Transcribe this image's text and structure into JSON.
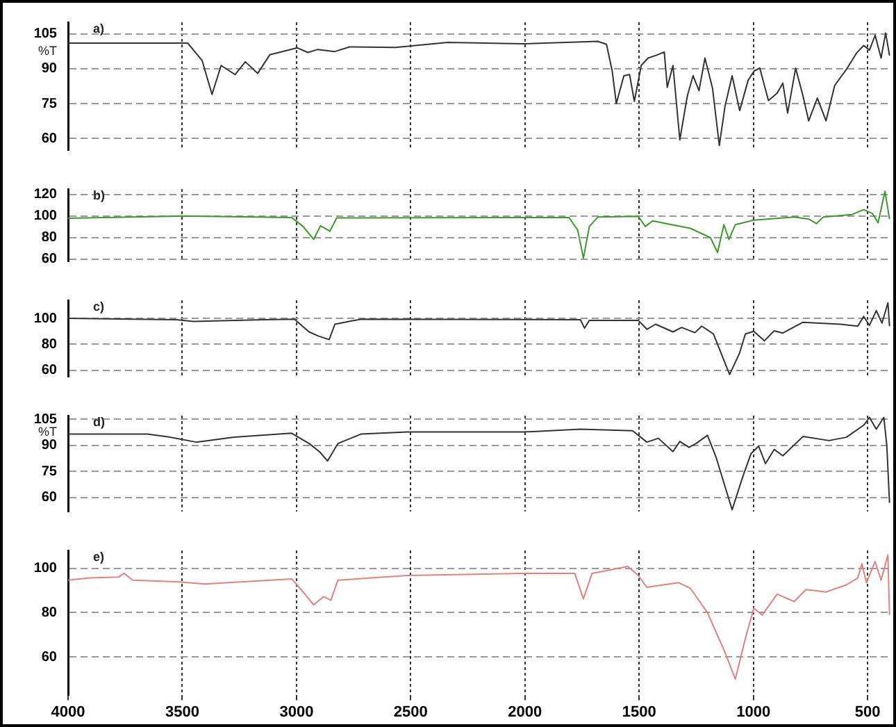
{
  "chart_data": [
    {
      "type": "line",
      "ylabel": "%T",
      "annotations": [
        "a)"
      ],
      "xlim": [
        4000,
        400
      ],
      "xticks": [
        4000,
        3500,
        3000,
        2500,
        2000,
        1500,
        1000,
        500
      ],
      "ylim": [
        55,
        110
      ],
      "yticks": [
        60,
        75,
        90,
        105
      ],
      "grid": true,
      "tick_labels": "y",
      "series": [
        {
          "color": "#333333",
          "x": [
            4000,
            3476,
            3413,
            3370,
            3330,
            3269,
            3224,
            3170,
            3117,
            2996,
            2950,
            2907,
            2832,
            2768,
            2566,
            2338,
            2010,
            1681,
            1643,
            1618,
            1600,
            1567,
            1542,
            1521,
            1491,
            1461,
            1428,
            1390,
            1377,
            1352,
            1322,
            1289,
            1264,
            1238,
            1212,
            1179,
            1149,
            1124,
            1093,
            1060,
            1023,
            997,
            972,
            934,
            896,
            871,
            850,
            815,
            783,
            758,
            720,
            682,
            644,
            593,
            548,
            517,
            492,
            467,
            441,
            421,
            404
          ],
          "values": [
            101,
            101,
            93.5,
            79,
            91.4,
            87.5,
            93,
            88,
            96,
            99,
            97,
            98.3,
            97.4,
            99.4,
            99.2,
            101.3,
            100.7,
            101.8,
            100.5,
            89,
            75,
            87,
            87.5,
            76,
            91.4,
            94.6,
            95.7,
            97.2,
            82,
            91.4,
            59.4,
            78.4,
            87,
            80.6,
            94.6,
            81.7,
            57,
            74,
            87,
            72,
            85,
            89,
            90.3,
            76.3,
            79.5,
            83.8,
            70.9,
            90.3,
            78.4,
            67.6,
            77.4,
            67.6,
            82.8,
            89.7,
            96.8,
            100,
            98,
            104.4,
            94.6,
            105.4,
            95.7
          ]
        }
      ]
    },
    {
      "type": "line",
      "annotations": [
        "b)"
      ],
      "xlim": [
        4000,
        400
      ],
      "xticks": [
        4000,
        3500,
        3000,
        2500,
        2000,
        1500,
        1000,
        500
      ],
      "ylim": [
        58,
        125
      ],
      "yticks": [
        60,
        80,
        100,
        120
      ],
      "grid": true,
      "tick_labels": "y",
      "series": [
        {
          "color": "#3a9a2a",
          "x": [
            4000,
            3502,
            3021,
            2971,
            2925,
            2895,
            2854,
            2824,
            1807,
            1769,
            1744,
            1718,
            1681,
            1504,
            1473,
            1441,
            1377,
            1276,
            1188,
            1157,
            1129,
            1107,
            1079,
            998,
            821,
            758,
            724,
            694,
            568,
            517,
            479,
            454,
            424,
            404
          ],
          "values": [
            98,
            100,
            98.6,
            90.3,
            78.3,
            91,
            85.9,
            98.3,
            98.6,
            86.9,
            61,
            90.3,
            99,
            99.7,
            90.3,
            95.5,
            92.8,
            88.6,
            80,
            66.2,
            92,
            78.3,
            92,
            96.2,
            99,
            97.2,
            93,
            99,
            101.4,
            105.9,
            102.4,
            93.8,
            123,
            97.2
          ]
        }
      ]
    },
    {
      "type": "line",
      "annotations": [
        "c)"
      ],
      "xlim": [
        4000,
        400
      ],
      "xticks": [
        4000,
        3500,
        3000,
        2500,
        2000,
        1500,
        1000,
        500
      ],
      "ylim": [
        55,
        114
      ],
      "yticks": [
        60,
        80,
        100
      ],
      "grid": true,
      "tick_labels": "y",
      "series": [
        {
          "color": "#333333",
          "x": [
            4000,
            3527,
            3451,
            3148,
            3009,
            2945,
            2907,
            2857,
            2832,
            2718,
            1757,
            1739,
            1718,
            1504,
            1466,
            1428,
            1352,
            1314,
            1256,
            1226,
            1175,
            1104,
            1061,
            1035,
            998,
            952,
            909,
            871,
            783,
            619,
            543,
            517,
            492,
            462,
            437,
            411,
            404
          ],
          "values": [
            100,
            99,
            97.6,
            99,
            99.4,
            89.6,
            86.6,
            83.6,
            95.5,
            99.4,
            99,
            92.5,
            98.5,
            98.5,
            91.6,
            95.5,
            89.6,
            93,
            89,
            94,
            88,
            56.7,
            73,
            88,
            90,
            82.7,
            90.4,
            88.7,
            97,
            95.5,
            94,
            101.5,
            94.6,
            106,
            96.4,
            112,
            94
          ]
        }
      ]
    },
    {
      "type": "line",
      "ylabel": "%T",
      "annotations": [
        "d)"
      ],
      "xlim": [
        4000,
        400
      ],
      "xticks": [
        4000,
        3500,
        3000,
        2500,
        2000,
        1500,
        1000,
        500
      ],
      "ylim": [
        52,
        107
      ],
      "yticks": [
        60,
        75,
        90,
        105
      ],
      "grid": true,
      "tick_labels": "y",
      "series": [
        {
          "color": "#333333",
          "x": [
            4000,
            3653,
            3552,
            3439,
            3274,
            3021,
            2945,
            2900,
            2864,
            2819,
            2718,
            2515,
            2010,
            1757,
            1529,
            1466,
            1416,
            1352,
            1322,
            1282,
            1251,
            1201,
            1163,
            1093,
            1048,
            1010,
            977,
            947,
            909,
            871,
            783,
            669,
            593,
            517,
            492,
            462,
            429,
            416,
            404
          ],
          "values": [
            96.4,
            96.4,
            94.6,
            91.8,
            94.6,
            96.9,
            91,
            86.4,
            81,
            91,
            96.4,
            97.6,
            97.6,
            99.2,
            98.3,
            91.8,
            94,
            86.4,
            92.2,
            88.8,
            91,
            95.7,
            83,
            53,
            71.4,
            85.3,
            89.5,
            79.5,
            87.6,
            84,
            95,
            92.7,
            94.6,
            101.5,
            106,
            99.2,
            106,
            90,
            57
          ]
        }
      ]
    },
    {
      "type": "line",
      "annotations": [
        "e)"
      ],
      "xlim": [
        4000,
        400
      ],
      "xticks": [
        4000,
        3500,
        3000,
        2500,
        2000,
        1500,
        1000,
        500
      ],
      "ylim": [
        43,
        108
      ],
      "yticks": [
        60,
        80,
        100
      ],
      "grid": true,
      "series": [
        {
          "color": "#e8807a",
          "x": [
            4000,
            3906,
            3780,
            3755,
            3717,
            3527,
            3401,
            3021,
            2971,
            2925,
            2882,
            2849,
            2819,
            2515,
            2010,
            1782,
            1744,
            1706,
            1549,
            1504,
            1466,
            1327,
            1276,
            1201,
            1124,
            1079,
            1035,
            998,
            961,
            896,
            821,
            770,
            682,
            593,
            543,
            525,
            505,
            467,
            441,
            411,
            404
          ],
          "values": [
            94.6,
            95.6,
            96,
            97.7,
            94.6,
            93.9,
            92.9,
            95.2,
            89.3,
            83.5,
            87.2,
            85.6,
            94.6,
            96.7,
            97.7,
            97.7,
            86.2,
            97.7,
            100.8,
            96.7,
            91.4,
            93.5,
            91,
            80,
            62,
            50,
            68.4,
            82,
            78.9,
            88.3,
            85,
            90.4,
            89.3,
            92.5,
            95.6,
            102,
            93.5,
            103,
            94.6,
            106,
            79
          ]
        }
      ]
    }
  ]
}
